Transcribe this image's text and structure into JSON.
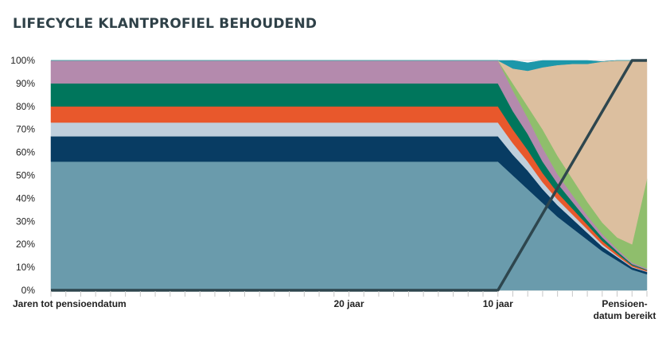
{
  "title": "LIFECYCLE KLANTPROFIEL BEHOUDEND",
  "chart_data": {
    "type": "area",
    "title": "LIFECYCLE KLANTPROFIEL BEHOUDEND",
    "xlabel": "",
    "ylabel": "",
    "stacked": true,
    "ylim": [
      0,
      100
    ],
    "yticks": [
      "0%",
      "10%",
      "20%",
      "30%",
      "40%",
      "50%",
      "60%",
      "70%",
      "80%",
      "90%",
      "100%"
    ],
    "x_domain": [
      0,
      40
    ],
    "x_tick_labels": [
      {
        "x": 0,
        "label": "Jaren tot pensioendatum"
      },
      {
        "x": 20,
        "label": "20 jaar"
      },
      {
        "x": 30,
        "label": "10 jaar"
      },
      {
        "x": 40,
        "label": "Pensioen-\ndatum bereikt"
      }
    ],
    "x": [
      0,
      30,
      31,
      32,
      33,
      34,
      35,
      36,
      37,
      38,
      39,
      40
    ],
    "series": [
      {
        "color": "#6a9bac",
        "values": [
          56,
          56,
          50,
          44,
          38,
          32,
          27,
          22,
          17,
          13,
          9,
          7
        ]
      },
      {
        "color": "#083c63",
        "values": [
          11,
          11,
          9,
          8,
          6,
          5,
          4,
          3,
          2,
          1.5,
          1,
          1
        ]
      },
      {
        "color": "#bfcfdc",
        "values": [
          6,
          6,
          5,
          4,
          3,
          2.5,
          2,
          1.5,
          1,
          0.5,
          0.3,
          0.2
        ]
      },
      {
        "color": "#e8582c",
        "values": [
          7,
          7,
          6,
          5,
          4,
          3,
          2.5,
          2,
          1.5,
          1,
          0.6,
          0.5
        ]
      },
      {
        "color": "#00765c",
        "values": [
          10,
          10,
          8,
          7,
          5,
          4,
          3,
          2,
          1.5,
          1,
          0.5,
          0.3
        ]
      },
      {
        "color": "#b48aad",
        "values": [
          10,
          10,
          9,
          7,
          6,
          4,
          3,
          2,
          1.5,
          1,
          0.6,
          0.5
        ]
      },
      {
        "color": "#8fbe6c",
        "values": [
          0,
          0,
          3,
          5,
          8,
          8,
          7,
          6,
          5,
          5,
          8,
          39
        ]
      },
      {
        "color": "#dcbf9f",
        "values": [
          0,
          0,
          6.5,
          15.5,
          27,
          39.5,
          50,
          60,
          70,
          77,
          80,
          52
        ]
      },
      {
        "color": "#1c97aa",
        "values": [
          0,
          0,
          3.5,
          3.5,
          3,
          2,
          1.5,
          1.5,
          0,
          0,
          0,
          0
        ]
      }
    ],
    "line_series": {
      "color": "#2e464e",
      "x": [
        0,
        30,
        39,
        40
      ],
      "values": [
        0,
        0,
        100,
        100
      ]
    },
    "grid": true,
    "legend": "none"
  }
}
